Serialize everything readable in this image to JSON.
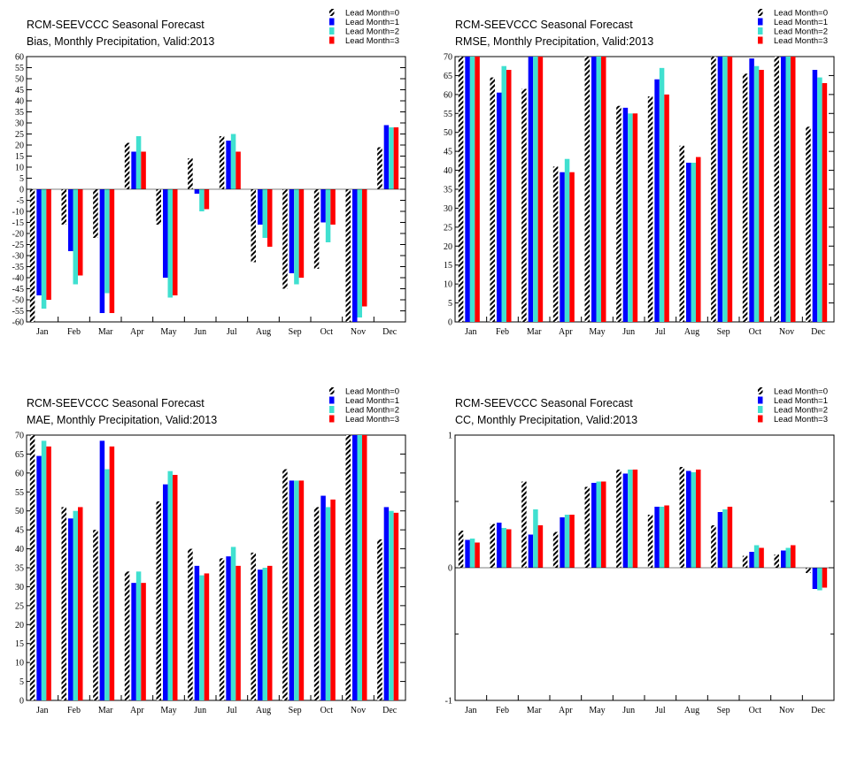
{
  "figure": {
    "title": "RCM-SEEVCCC Seasonal Forecast",
    "legend": [
      "Lead Month=0",
      "Lead Month=1",
      "Lead Month=2",
      "Lead Month=3"
    ],
    "series_colors": [
      "#000000",
      "#0000ff",
      "#40e0d0",
      "#ff0000"
    ]
  },
  "chart_data": [
    {
      "type": "bar",
      "title": "RCM-SEEVCCC Seasonal Forecast",
      "subtitle": "Bias, Monthly Precipitation, Valid:2013",
      "xlabel": "",
      "ylabel": "",
      "categories": [
        "Jan",
        "Feb",
        "Mar",
        "Apr",
        "May",
        "Jun",
        "Jul",
        "Aug",
        "Sep",
        "Oct",
        "Nov",
        "Dec"
      ],
      "ylim": [
        -60,
        60
      ],
      "yticks": [
        -60,
        -55,
        -50,
        -45,
        -40,
        -35,
        -30,
        -25,
        -20,
        -15,
        -10,
        -5,
        0,
        5,
        10,
        15,
        20,
        25,
        30,
        35,
        40,
        45,
        50,
        55,
        60
      ],
      "legend_position": "top-right",
      "grid": false,
      "series": [
        {
          "name": "Lead Month=0",
          "color": "#000000",
          "pattern": "hatched",
          "values": [
            -60,
            -16,
            -22,
            21,
            -16,
            14,
            24,
            -33,
            -45,
            -36,
            -60,
            19
          ]
        },
        {
          "name": "Lead Month=1",
          "color": "#0000ff",
          "values": [
            -48,
            -28,
            -56,
            17,
            -40,
            -2,
            22,
            -16,
            -38,
            -15,
            -60,
            29
          ]
        },
        {
          "name": "Lead Month=2",
          "color": "#40e0d0",
          "values": [
            -54,
            -43,
            -47,
            24,
            -49,
            -10,
            25,
            -22,
            -43,
            -24,
            -58,
            28
          ]
        },
        {
          "name": "Lead Month=3",
          "color": "#ff0000",
          "values": [
            -50,
            -39,
            -56,
            17,
            -48,
            -9,
            17,
            -26,
            -40,
            -16,
            -53,
            28
          ]
        }
      ]
    },
    {
      "type": "bar",
      "title": "RCM-SEEVCCC Seasonal Forecast",
      "subtitle": "RMSE, Monthly Precipitation, Valid:2013",
      "xlabel": "",
      "ylabel": "",
      "categories": [
        "Jan",
        "Feb",
        "Mar",
        "Apr",
        "May",
        "Jun",
        "Jul",
        "Aug",
        "Sep",
        "Oct",
        "Nov",
        "Dec"
      ],
      "ylim": [
        0,
        70
      ],
      "yticks": [
        0,
        5,
        10,
        15,
        20,
        25,
        30,
        35,
        40,
        45,
        50,
        55,
        60,
        65,
        70
      ],
      "legend_position": "top-right",
      "grid": false,
      "series": [
        {
          "name": "Lead Month=0",
          "color": "#000000",
          "pattern": "hatched",
          "values": [
            70,
            64.5,
            61.5,
            41,
            70,
            57,
            59.5,
            46.5,
            70,
            65.5,
            70,
            51.5
          ]
        },
        {
          "name": "Lead Month=1",
          "color": "#0000ff",
          "values": [
            70,
            60.5,
            70,
            39.5,
            70,
            56.5,
            64,
            42,
            70,
            69.5,
            70,
            66.5
          ]
        },
        {
          "name": "Lead Month=2",
          "color": "#40e0d0",
          "values": [
            70,
            67.5,
            70,
            43,
            70,
            55,
            67,
            42,
            70,
            67.5,
            70,
            64.5
          ]
        },
        {
          "name": "Lead Month=3",
          "color": "#ff0000",
          "values": [
            70,
            66.5,
            70,
            39.5,
            70,
            55,
            60,
            43.5,
            70,
            66.5,
            70,
            63
          ]
        }
      ]
    },
    {
      "type": "bar",
      "title": "RCM-SEEVCCC Seasonal Forecast",
      "subtitle": "MAE, Monthly Precipitation, Valid:2013",
      "xlabel": "",
      "ylabel": "",
      "categories": [
        "Jan",
        "Feb",
        "Mar",
        "Apr",
        "May",
        "Jun",
        "Jul",
        "Aug",
        "Sep",
        "Oct",
        "Nov",
        "Dec"
      ],
      "ylim": [
        0,
        70
      ],
      "yticks": [
        0,
        5,
        10,
        15,
        20,
        25,
        30,
        35,
        40,
        45,
        50,
        55,
        60,
        65,
        70
      ],
      "legend_position": "top-right",
      "grid": false,
      "series": [
        {
          "name": "Lead Month=0",
          "color": "#000000",
          "pattern": "hatched",
          "values": [
            70,
            51,
            45,
            34,
            52.5,
            40,
            37.5,
            39,
            61,
            51,
            70,
            42.5
          ]
        },
        {
          "name": "Lead Month=1",
          "color": "#0000ff",
          "values": [
            64.5,
            48,
            68.5,
            31,
            57,
            35.5,
            38,
            34.5,
            58,
            54,
            70,
            51
          ]
        },
        {
          "name": "Lead Month=2",
          "color": "#40e0d0",
          "values": [
            68.5,
            50,
            61,
            34,
            60.5,
            33,
            40.5,
            35,
            58,
            51,
            70,
            50
          ]
        },
        {
          "name": "Lead Month=3",
          "color": "#ff0000",
          "values": [
            67,
            51,
            67,
            31,
            59.5,
            33.5,
            35.5,
            35.5,
            58,
            53,
            70,
            49.5
          ]
        }
      ]
    },
    {
      "type": "bar",
      "title": "RCM-SEEVCCC Seasonal Forecast",
      "subtitle": "CC, Monthly Precipitation, Valid:2013",
      "xlabel": "",
      "ylabel": "",
      "categories": [
        "Jan",
        "Feb",
        "Mar",
        "Apr",
        "May",
        "Jun",
        "Jul",
        "Aug",
        "Sep",
        "Oct",
        "Nov",
        "Dec"
      ],
      "ylim": [
        -1,
        1
      ],
      "yticks": [
        -1,
        0,
        1
      ],
      "legend_position": "top-right",
      "grid": false,
      "series": [
        {
          "name": "Lead Month=0",
          "color": "#000000",
          "pattern": "hatched",
          "values": [
            0.28,
            0.33,
            0.65,
            0.27,
            0.61,
            0.74,
            0.4,
            0.76,
            0.32,
            0.09,
            0.1,
            -0.04
          ]
        },
        {
          "name": "Lead Month=1",
          "color": "#0000ff",
          "values": [
            0.21,
            0.34,
            0.25,
            0.38,
            0.64,
            0.71,
            0.46,
            0.73,
            0.42,
            0.12,
            0.13,
            -0.16
          ]
        },
        {
          "name": "Lead Month=2",
          "color": "#40e0d0",
          "values": [
            0.22,
            0.3,
            0.44,
            0.4,
            0.65,
            0.74,
            0.46,
            0.72,
            0.44,
            0.17,
            0.15,
            -0.17
          ]
        },
        {
          "name": "Lead Month=3",
          "color": "#ff0000",
          "values": [
            0.19,
            0.29,
            0.32,
            0.4,
            0.65,
            0.74,
            0.47,
            0.74,
            0.46,
            0.15,
            0.17,
            -0.15
          ]
        }
      ]
    }
  ]
}
